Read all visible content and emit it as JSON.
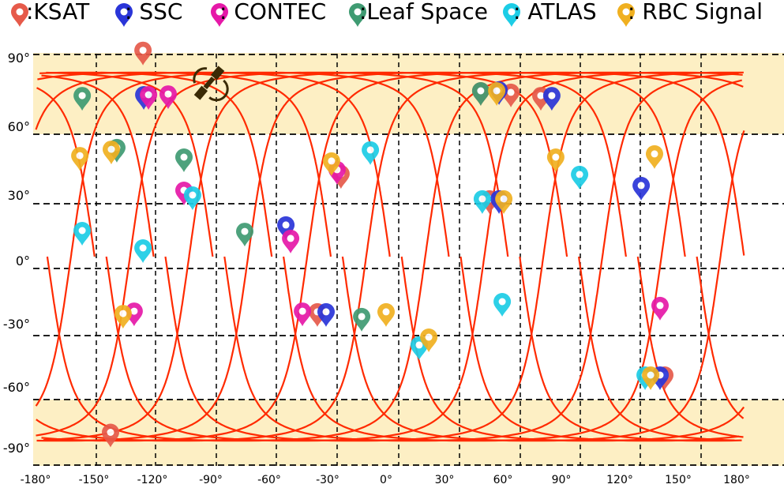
{
  "legend": [
    {
      "label": ":KSAT",
      "color": "#e65a4a",
      "icon": "map-pin-icon"
    },
    {
      "label": " : SSC",
      "color": "#2a35d8",
      "icon": "map-pin-icon"
    },
    {
      "label": ": CONTEC",
      "color": "#e619a8",
      "icon": "map-pin-icon"
    },
    {
      "label": ":Leaf Space",
      "color": "#3f9b72",
      "icon": "map-pin-icon"
    },
    {
      "label": " : ATLAS",
      "color": "#1ccde6",
      "icon": "map-pin-icon"
    },
    {
      "label": " : RBC Signal",
      "color": "#f0b020",
      "icon": "map-pin-icon"
    }
  ],
  "axes": {
    "y_ticks": [
      "90°",
      "60°",
      "30°",
      "0°",
      "-30°",
      "-60°",
      "-90°"
    ],
    "x_ticks": [
      "-180°",
      "-150°",
      "-120°",
      "-90°",
      "-60°",
      "-30°",
      "0°",
      "30°",
      "60°",
      "90°",
      "120°",
      "150°",
      "180°"
    ]
  },
  "colors": {
    "polar_band": "#fdefc4",
    "ground_track": "#ff2a00",
    "grid": "#000000",
    "satellite": "#3a2a05"
  },
  "satellite_icon": "satellite-icon",
  "stations": {
    "KSAT": [
      [
        -125.4,
        88.3
      ],
      [
        -141.9,
        -88
      ],
      [
        46.2,
        69.6
      ],
      [
        61.5,
        68.9
      ],
      [
        76.7,
        67.4
      ],
      [
        -36.8,
        -32.4
      ],
      [
        -24.8,
        31.3
      ],
      [
        50.6,
        19.7
      ],
      [
        139.7,
        -61.6
      ]
    ],
    "SSC": [
      [
        -125.0,
        67.8
      ],
      [
        55.5,
        70.0
      ],
      [
        82.3,
        67.4
      ],
      [
        -52.8,
        7.7
      ],
      [
        -32.4,
        -32.4
      ],
      [
        55.5,
        19.7
      ],
      [
        127.7,
        25.9
      ],
      [
        137.3,
        -61.6
      ]
    ],
    "CONTEC": [
      [
        -122.6,
        67.8
      ],
      [
        -112.6,
        68.1
      ],
      [
        -104.6,
        23.7
      ],
      [
        -50.4,
        1.5
      ],
      [
        -44.4,
        -32.1
      ],
      [
        -129.9,
        -32.1
      ],
      [
        -26.8,
        33.2
      ],
      [
        137.3,
        -29.5
      ]
    ],
    "Leaf Space": [
      [
        -156.3,
        67.4
      ],
      [
        -138.7,
        43.4
      ],
      [
        -104.6,
        39.0
      ],
      [
        -73.7,
        4.7
      ],
      [
        -14.3,
        -34.6
      ],
      [
        46.2,
        69.6
      ]
    ],
    "ATLAS": [
      [
        -156.3,
        5.1
      ],
      [
        -125.4,
        -2.9
      ],
      [
        -100.2,
        21.5
      ],
      [
        -9.9,
        42.3
      ],
      [
        47.0,
        19.7
      ],
      [
        57.1,
        -27.7
      ],
      [
        96.4,
        31.0
      ],
      [
        14.9,
        -47.7
      ],
      [
        129.7,
        -61.6
      ]
    ],
    "RBC Signal": [
      [
        -157.5,
        39.7
      ],
      [
        -141.5,
        42.6
      ],
      [
        -135.5,
        -33.2
      ],
      [
        -29.6,
        37.2
      ],
      [
        -1.9,
        -32.4
      ],
      [
        19.8,
        -44.1
      ],
      [
        54.3,
        69.6
      ],
      [
        57.9,
        19.7
      ],
      [
        84.3,
        39.0
      ],
      [
        134.5,
        40.5
      ],
      [
        132.5,
        -61.6
      ]
    ]
  }
}
